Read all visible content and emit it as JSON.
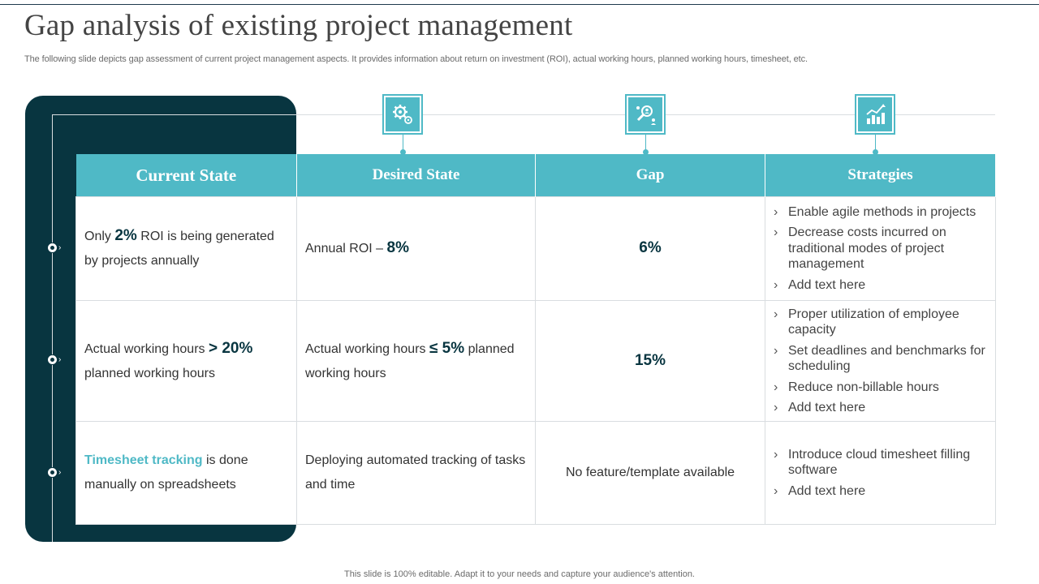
{
  "header": {
    "title": "Gap analysis of existing project management",
    "subtitle": "The following slide depicts gap assessment of current project management aspects. It provides information about return on investment (ROI), actual working hours, planned working hours, timesheet, etc."
  },
  "table": {
    "columns": [
      "Current State",
      "Desired State",
      "Gap",
      "Strategies"
    ],
    "column_icons": [
      "gear-icon",
      "search-people-icon",
      "chart-growth-icon"
    ],
    "rows": [
      {
        "current": {
          "pre": "Only ",
          "num": "2%",
          "post": " ROI is being generated by projects annually"
        },
        "desired": {
          "pre": "Annual ROI – ",
          "num": "8%",
          "post": ""
        },
        "gap": "6%",
        "strategies": [
          "Enable agile methods in projects",
          "Decrease costs incurred on traditional modes of project management",
          "Add text here"
        ]
      },
      {
        "current": {
          "pre": "Actual working hours ",
          "num": "> 20%",
          "post": " planned working hours"
        },
        "desired": {
          "pre": "Actual working hours ",
          "num": "≤ 5%",
          "post": " planned working hours"
        },
        "gap": "15%",
        "strategies": [
          "Proper utilization of employee capacity",
          "Set deadlines and benchmarks for scheduling",
          "Reduce non-billable hours",
          "Add text here"
        ]
      },
      {
        "current": {
          "hl": "Timesheet tracking",
          "post": " is done manually on spreadsheets"
        },
        "desired": {
          "pre": "Deploying automated tracking of tasks and time",
          "num": "",
          "post": ""
        },
        "gap": "No feature/template available",
        "strategies": [
          "Introduce cloud timesheet filling software",
          "Add text here"
        ]
      }
    ]
  },
  "footer": "This slide is 100% editable. Adapt it to your needs and capture your audience's attention.",
  "colors": {
    "dark_teal": "#083540",
    "accent_teal": "#4fb9c6"
  }
}
